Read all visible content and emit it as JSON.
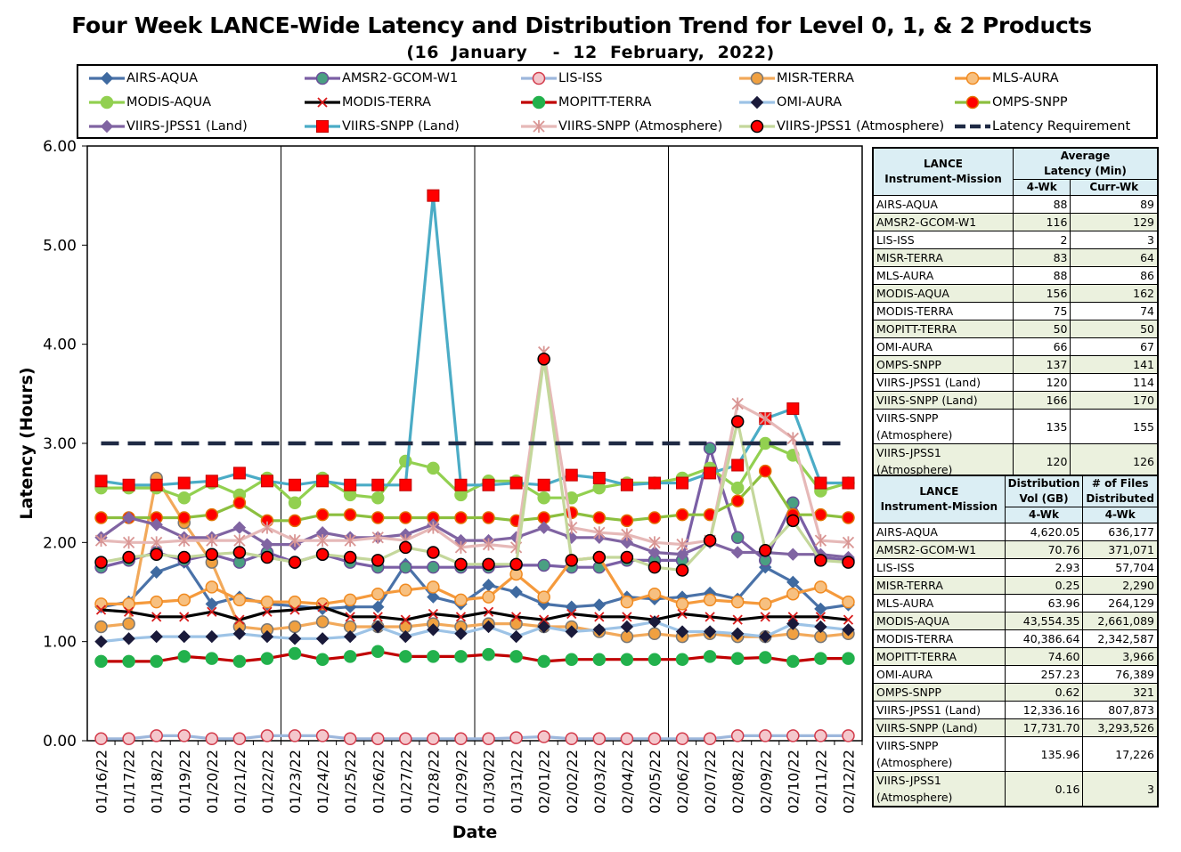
{
  "chart_data": {
    "type": "line",
    "title": "Four Week LANCE-Wide Latency and Distribution Trend for Level 0, 1, & 2 Products",
    "subtitle": "(16  January    -  12  February,  2022)",
    "xlabel": "Date",
    "ylabel": "Latency (Hours)",
    "ylim": [
      0,
      6
    ],
    "yticks": [
      "0.00",
      "1.00",
      "2.00",
      "3.00",
      "4.00",
      "5.00",
      "6.00"
    ],
    "grid": "vertical lines weekly",
    "legend_position": "top",
    "x": [
      "01/16/22",
      "01/17/22",
      "01/18/22",
      "01/19/22",
      "01/20/22",
      "01/21/22",
      "01/22/22",
      "01/23/22",
      "01/24/22",
      "01/25/22",
      "01/26/22",
      "01/27/22",
      "01/28/22",
      "01/29/22",
      "01/30/22",
      "01/31/22",
      "02/01/22",
      "02/02/22",
      "02/03/22",
      "02/04/22",
      "02/05/22",
      "02/06/22",
      "02/07/22",
      "02/08/22",
      "02/09/22",
      "02/10/22",
      "02/11/22",
      "02/12/22"
    ],
    "series": [
      {
        "name": "AIRS-AQUA",
        "color": "#4a72a8",
        "marker": "diamond",
        "mfill": "#3f6aa0",
        "mstroke": "#3f6aa0",
        "values": [
          1.35,
          1.4,
          1.7,
          1.8,
          1.38,
          1.45,
          1.38,
          1.36,
          1.33,
          1.35,
          1.35,
          1.78,
          1.45,
          1.38,
          1.57,
          1.5,
          1.38,
          1.35,
          1.37,
          1.45,
          1.43,
          1.45,
          1.49,
          1.43,
          1.75,
          1.6,
          1.33,
          1.37
        ]
      },
      {
        "name": "AMSR2-GCOM-W1",
        "color": "#7b5fa5",
        "marker": "circle",
        "mfill": "#4aa082",
        "mstroke": "#6a4e98",
        "values": [
          1.75,
          1.82,
          1.9,
          1.82,
          1.88,
          1.8,
          1.9,
          1.8,
          1.88,
          1.8,
          1.75,
          1.75,
          1.75,
          1.75,
          1.75,
          1.77,
          1.77,
          1.75,
          1.75,
          1.82,
          1.82,
          1.82,
          2.95,
          2.05,
          1.82,
          2.4,
          1.85,
          1.82
        ]
      },
      {
        "name": "LIS-ISS",
        "color": "#9db7dc",
        "marker": "circle",
        "mfill": "#f4c7cc",
        "mstroke": "#d23a4a",
        "values": [
          0.02,
          0.02,
          0.05,
          0.05,
          0.02,
          0.02,
          0.05,
          0.05,
          0.05,
          0.02,
          0.02,
          0.02,
          0.02,
          0.02,
          0.02,
          0.03,
          0.04,
          0.02,
          0.02,
          0.02,
          0.02,
          0.02,
          0.02,
          0.05,
          0.05,
          0.05,
          0.05,
          0.05
        ]
      },
      {
        "name": "MISR-TERRA",
        "color": "#f2a95a",
        "marker": "circle",
        "mfill": "#f0a040",
        "mstroke": "#777777",
        "values": [
          1.15,
          1.18,
          2.65,
          2.2,
          1.8,
          1.15,
          1.12,
          1.15,
          1.2,
          1.15,
          1.15,
          1.15,
          1.18,
          1.15,
          1.18,
          1.18,
          1.15,
          1.15,
          1.1,
          1.05,
          1.08,
          1.05,
          1.08,
          1.05,
          1.05,
          1.08,
          1.05,
          1.08
        ]
      },
      {
        "name": "MLS-AURA",
        "color": "#f59a3c",
        "marker": "circle",
        "mfill": "#f7c080",
        "mstroke": "#f08a20",
        "values": [
          1.38,
          1.38,
          1.4,
          1.42,
          1.55,
          1.42,
          1.4,
          1.4,
          1.38,
          1.42,
          1.48,
          1.52,
          1.55,
          1.42,
          1.45,
          1.68,
          1.45,
          1.82,
          1.85,
          1.4,
          1.48,
          1.38,
          1.42,
          1.4,
          1.38,
          1.48,
          1.55,
          1.4
        ]
      },
      {
        "name": "MODIS-AQUA",
        "color": "#92d050",
        "marker": "circle",
        "mfill": "#92d050",
        "mstroke": "#92d050",
        "values": [
          2.55,
          2.55,
          2.55,
          2.45,
          2.6,
          2.48,
          2.65,
          2.4,
          2.65,
          2.48,
          2.45,
          2.82,
          2.75,
          2.48,
          2.62,
          2.62,
          2.45,
          2.45,
          2.55,
          2.6,
          2.6,
          2.65,
          2.75,
          2.55,
          3.0,
          2.88,
          2.52,
          2.6
        ]
      },
      {
        "name": "MODIS-TERRA",
        "color": "#000000",
        "marker": "x",
        "mfill": "#d81c1c",
        "mstroke": "#d81c1c",
        "values": [
          1.32,
          1.3,
          1.25,
          1.25,
          1.3,
          1.22,
          1.3,
          1.32,
          1.35,
          1.25,
          1.25,
          1.22,
          1.28,
          1.25,
          1.3,
          1.25,
          1.22,
          1.28,
          1.25,
          1.25,
          1.22,
          1.28,
          1.25,
          1.22,
          1.25,
          1.25,
          1.25,
          1.22
        ]
      },
      {
        "name": "MOPITT-TERRA",
        "color": "#c00000",
        "marker": "circle",
        "mfill": "#22b14c",
        "mstroke": "#22b14c",
        "values": [
          0.8,
          0.8,
          0.8,
          0.85,
          0.83,
          0.8,
          0.83,
          0.88,
          0.82,
          0.85,
          0.9,
          0.85,
          0.85,
          0.85,
          0.87,
          0.85,
          0.8,
          0.82,
          0.82,
          0.82,
          0.82,
          0.82,
          0.85,
          0.83,
          0.84,
          0.8,
          0.83,
          0.83
        ]
      },
      {
        "name": "OMI-AURA",
        "color": "#9dc3e6",
        "marker": "diamond",
        "mfill": "#1a1a3a",
        "mstroke": "#1a1a3a",
        "values": [
          1.0,
          1.03,
          1.05,
          1.05,
          1.05,
          1.08,
          1.05,
          1.03,
          1.03,
          1.05,
          1.15,
          1.05,
          1.12,
          1.08,
          1.15,
          1.05,
          1.15,
          1.1,
          1.12,
          1.15,
          1.2,
          1.1,
          1.1,
          1.08,
          1.05,
          1.18,
          1.15,
          1.12
        ]
      },
      {
        "name": "OMPS-SNPP",
        "color": "#8cbf3f",
        "marker": "circle",
        "mfill": "#ff0000",
        "mstroke": "#e07000",
        "values": [
          2.25,
          2.25,
          2.25,
          2.25,
          2.28,
          2.4,
          2.22,
          2.22,
          2.28,
          2.28,
          2.25,
          2.25,
          2.25,
          2.25,
          2.25,
          2.22,
          2.25,
          2.3,
          2.25,
          2.22,
          2.25,
          2.28,
          2.28,
          2.42,
          2.72,
          2.28,
          2.28,
          2.25
        ]
      },
      {
        "name": "VIIRS-JPSS1 (Land)",
        "color": "#8064a2",
        "marker": "diamond",
        "mfill": "#8064a2",
        "mstroke": "#8064a2",
        "values": [
          2.05,
          2.25,
          2.18,
          2.05,
          2.05,
          2.15,
          1.98,
          1.98,
          2.1,
          2.05,
          2.05,
          2.08,
          2.18,
          2.02,
          2.02,
          2.05,
          2.15,
          2.05,
          2.05,
          2.0,
          1.9,
          1.88,
          2.0,
          1.9,
          1.9,
          1.88,
          1.88,
          1.85
        ]
      },
      {
        "name": "VIIRS-SNPP (Land)",
        "color": "#4bacc6",
        "marker": "square",
        "mfill": "#ff0000",
        "mstroke": "#c00000",
        "values": [
          2.62,
          2.58,
          2.58,
          2.6,
          2.62,
          2.7,
          2.62,
          2.58,
          2.62,
          2.58,
          2.58,
          2.58,
          5.5,
          2.58,
          2.58,
          2.6,
          2.58,
          2.68,
          2.65,
          2.58,
          2.6,
          2.6,
          2.7,
          2.78,
          3.25,
          3.35,
          2.6,
          2.6
        ]
      },
      {
        "name": "VIIRS-SNPP (Atmosphere)",
        "color": "#e6b9b8",
        "marker": "asterisk",
        "mfill": "#e6b9b8",
        "mstroke": "#d99694",
        "values": [
          2.02,
          2.0,
          2.0,
          2.02,
          2.02,
          2.02,
          2.15,
          2.02,
          2.02,
          2.02,
          2.05,
          2.02,
          2.15,
          1.95,
          1.98,
          1.95,
          3.92,
          2.15,
          2.1,
          2.08,
          2.0,
          1.98,
          2.02,
          3.4,
          3.25,
          3.05,
          2.02,
          2.0
        ]
      },
      {
        "name": "VIIRS-JPSS1 (Atmosphere)",
        "color": "#c4d79b",
        "marker": "circle",
        "mfill": "#ff0000",
        "mstroke": "#000000",
        "values": [
          1.8,
          1.85,
          1.88,
          1.85,
          1.88,
          1.9,
          1.85,
          1.8,
          1.88,
          1.85,
          1.82,
          1.95,
          1.9,
          1.78,
          1.78,
          1.78,
          3.85,
          1.82,
          1.85,
          1.85,
          1.75,
          1.72,
          2.02,
          3.22,
          1.92,
          2.22,
          1.82,
          1.8
        ]
      },
      {
        "name": "Latency Requirement",
        "color": "#1f2a44",
        "marker": "none",
        "dash": true,
        "values": [
          3,
          3,
          3,
          3,
          3,
          3,
          3,
          3,
          3,
          3,
          3,
          3,
          3,
          3,
          3,
          3,
          3,
          3,
          3,
          3,
          3,
          3,
          3,
          3,
          3,
          3,
          3,
          3
        ]
      }
    ]
  },
  "latency_table": {
    "header_col1": "LANCE\nInstrument-Mission",
    "header_col2": "Average\nLatency (Min)",
    "sub_4wk": "4-Wk",
    "sub_curr": "Curr-Wk",
    "rows": [
      [
        "AIRS-AQUA",
        "88",
        "89"
      ],
      [
        "AMSR2-GCOM-W1",
        "116",
        "129"
      ],
      [
        "LIS-ISS",
        "2",
        "3"
      ],
      [
        "MISR-TERRA",
        "83",
        "64"
      ],
      [
        "MLS-AURA",
        "88",
        "86"
      ],
      [
        "MODIS-AQUA",
        "156",
        "162"
      ],
      [
        "MODIS-TERRA",
        "75",
        "74"
      ],
      [
        "MOPITT-TERRA",
        "50",
        "50"
      ],
      [
        "OMI-AURA",
        "66",
        "67"
      ],
      [
        "OMPS-SNPP",
        "137",
        "141"
      ],
      [
        "VIIRS-JPSS1 (Land)",
        "120",
        "114"
      ],
      [
        "VIIRS-SNPP (Land)",
        "166",
        "170"
      ],
      [
        "VIIRS-SNPP (Atmosphere)",
        "135",
        "155"
      ],
      [
        "VIIRS-JPSS1 (Atmosphere)",
        "120",
        "126"
      ]
    ]
  },
  "distribution_table": {
    "header_col1": "LANCE\nInstrument-Mission",
    "header_col2": "Distribution\nVol (GB)",
    "header_col3": "# of Files\nDistributed",
    "sub_4wk_a": "4-Wk",
    "sub_4wk_b": "4-Wk",
    "rows": [
      [
        "AIRS-AQUA",
        "4,620.05",
        "636,177"
      ],
      [
        "AMSR2-GCOM-W1",
        "70.76",
        "371,071"
      ],
      [
        "LIS-ISS",
        "2.93",
        "57,704"
      ],
      [
        "MISR-TERRA",
        "0.25",
        "2,290"
      ],
      [
        "MLS-AURA",
        "63.96",
        "264,129"
      ],
      [
        "MODIS-AQUA",
        "43,554.35",
        "2,661,089"
      ],
      [
        "MODIS-TERRA",
        "40,386.64",
        "2,342,587"
      ],
      [
        "MOPITT-TERRA",
        "74.60",
        "3,966"
      ],
      [
        "OMI-AURA",
        "257.23",
        "76,389"
      ],
      [
        "OMPS-SNPP",
        "0.62",
        "321"
      ],
      [
        "VIIRS-JPSS1 (Land)",
        "12,336.16",
        "807,873"
      ],
      [
        "VIIRS-SNPP (Land)",
        "17,731.70",
        "3,293,526"
      ],
      [
        "VIIRS-SNPP (Atmosphere)",
        "135.96",
        "17,226"
      ],
      [
        "VIIRS-JPSS1 (Atmosphere)",
        "0.16",
        "3"
      ]
    ]
  }
}
